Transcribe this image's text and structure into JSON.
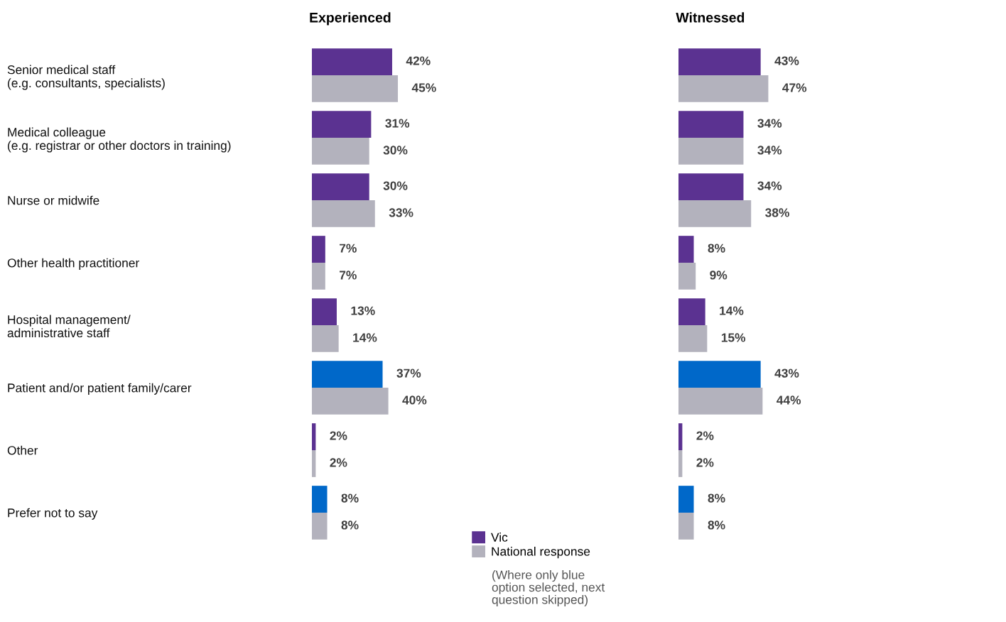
{
  "chart_data": [
    {
      "type": "bar",
      "orientation": "horizontal",
      "title": "Experienced",
      "legend": "bottom",
      "categories": [
        "Senior medical staff\n(e.g. consultants, specialists)",
        "Medical colleague\n(e.g. registrar or other doctors in training)",
        "Nurse or midwife",
        "Other health practitioner",
        "Hospital management/\nadministrative staff",
        "Patient and/or patient family/carer",
        "Other",
        "Prefer not to say"
      ],
      "series": [
        {
          "name": "Vic",
          "color": "#5b3291",
          "colors": [
            "#5b3291",
            "#5b3291",
            "#5b3291",
            "#5b3291",
            "#5b3291",
            "#0068c9",
            "#5b3291",
            "#0068c9"
          ],
          "values": [
            42,
            31,
            30,
            7,
            13,
            37,
            2,
            8
          ],
          "value_labels": [
            "42%",
            "31%",
            "30%",
            "7%",
            "13%",
            "37%",
            "2%",
            "8%"
          ]
        },
        {
          "name": "National response",
          "color": "#b3b2bd",
          "values": [
            45,
            30,
            33,
            7,
            14,
            40,
            2,
            8
          ],
          "value_labels": [
            "45%",
            "30%",
            "33%",
            "7%",
            "14%",
            "40%",
            "2%",
            "8%"
          ]
        }
      ],
      "annotations": [
        "(Where only blue\noption selected, next\nquestion skipped)"
      ]
    },
    {
      "type": "bar",
      "orientation": "horizontal",
      "title": "Witnessed",
      "categories": [
        null,
        null,
        null,
        null,
        null,
        null,
        null,
        null
      ],
      "series": [
        {
          "colors": [
            "#5b3291",
            "#5b3291",
            "#5b3291",
            "#5b3291",
            "#5b3291",
            "#0068c9",
            "#5b3291",
            "#0068c9"
          ],
          "values": [
            43,
            34,
            34,
            8,
            14,
            43,
            2,
            8
          ],
          "value_labels": [
            "43%",
            "34%",
            "34%",
            "8%",
            "14%",
            "43%",
            "2%",
            "8%"
          ]
        },
        {
          "color": "#b3b2bd",
          "values": [
            47,
            34,
            38,
            9,
            15,
            44,
            2,
            8
          ],
          "value_labels": [
            "47%",
            "34%",
            "38%",
            "9%",
            "15%",
            "44%",
            "2%",
            "8%"
          ]
        }
      ]
    }
  ]
}
